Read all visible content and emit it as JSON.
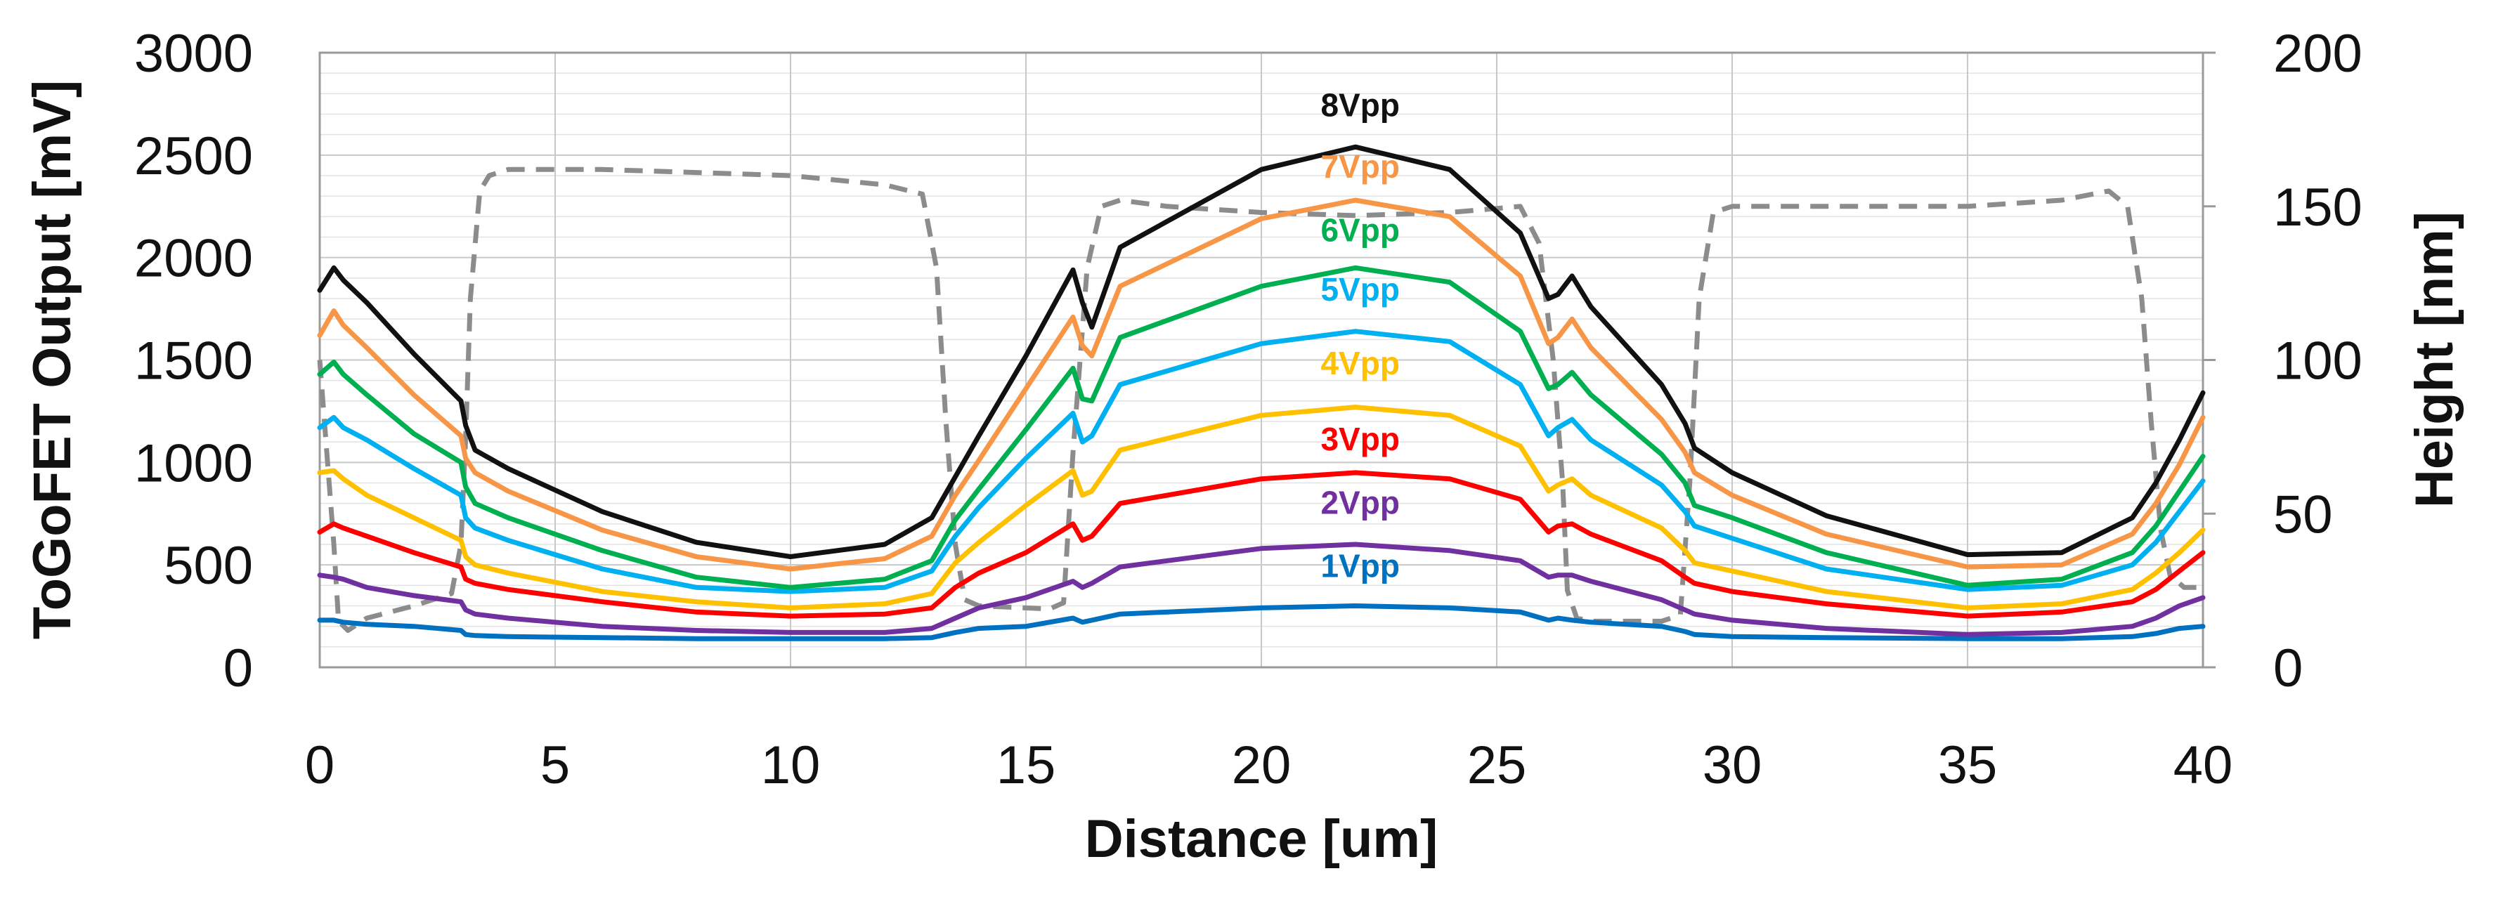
{
  "chart_data": {
    "type": "line",
    "title": "",
    "xlabel": "Distance [um]",
    "ylabel": "ToGoFET Output [mV]",
    "y2label": "Height [nm]",
    "xlim": [
      0,
      40
    ],
    "ylim": [
      0,
      3000
    ],
    "y2lim": [
      0,
      200
    ],
    "xticks": [
      "0",
      "5",
      "10",
      "15",
      "20",
      "25",
      "30",
      "35",
      "40"
    ],
    "yticks": [
      "0",
      "500",
      "1000",
      "1500",
      "2000",
      "2500",
      "3000"
    ],
    "y2ticks": [
      "0",
      "50",
      "100",
      "150",
      "200"
    ],
    "grid": true,
    "x": [
      0,
      0.3,
      0.5,
      1,
      2,
      3,
      3.1,
      3.3,
      4,
      6,
      8,
      10,
      12,
      13,
      13.5,
      14,
      15,
      16,
      16.2,
      16.4,
      17,
      20,
      22,
      24,
      25.5,
      26.1,
      26.3,
      26.6,
      27,
      28.5,
      29,
      29.2,
      30,
      32,
      35,
      37,
      38.5,
      39,
      39.5,
      40
    ],
    "series": [
      {
        "name": "8Vpp",
        "color": "#111111",
        "label_x": 22.1,
        "label_y": 2690,
        "values": [
          1840,
          1950,
          1890,
          1780,
          1530,
          1300,
          1180,
          1060,
          970,
          760,
          610,
          540,
          600,
          730,
          930,
          1130,
          1520,
          1940,
          1780,
          1660,
          2050,
          2430,
          2540,
          2430,
          2120,
          1800,
          1820,
          1910,
          1760,
          1380,
          1190,
          1070,
          950,
          740,
          550,
          560,
          730,
          900,
          1110,
          1340
        ]
      },
      {
        "name": "7Vpp",
        "color": "#f79646",
        "label_x": 22.1,
        "label_y": 2390,
        "values": [
          1620,
          1740,
          1670,
          1560,
          1330,
          1130,
          1020,
          950,
          860,
          670,
          540,
          480,
          530,
          640,
          840,
          1010,
          1360,
          1710,
          1570,
          1520,
          1860,
          2190,
          2280,
          2200,
          1910,
          1580,
          1610,
          1700,
          1560,
          1210,
          1050,
          950,
          840,
          650,
          490,
          500,
          650,
          800,
          990,
          1220
        ]
      },
      {
        "name": "6Vpp",
        "color": "#00b050",
        "label_x": 22.1,
        "label_y": 2080,
        "values": [
          1430,
          1490,
          1430,
          1330,
          1140,
          1000,
          880,
          800,
          730,
          570,
          440,
          390,
          430,
          520,
          720,
          870,
          1160,
          1460,
          1310,
          1300,
          1610,
          1860,
          1950,
          1880,
          1640,
          1360,
          1380,
          1440,
          1330,
          1040,
          900,
          790,
          730,
          560,
          400,
          430,
          560,
          690,
          860,
          1030
        ]
      },
      {
        "name": "5Vpp",
        "color": "#00b0f0",
        "label_x": 22.1,
        "label_y": 1790,
        "values": [
          1170,
          1220,
          1170,
          1110,
          970,
          840,
          730,
          680,
          620,
          480,
          390,
          370,
          390,
          470,
          640,
          780,
          1020,
          1240,
          1100,
          1130,
          1380,
          1580,
          1640,
          1590,
          1380,
          1130,
          1170,
          1210,
          1110,
          890,
          760,
          690,
          630,
          480,
          380,
          400,
          500,
          610,
          760,
          910
        ]
      },
      {
        "name": "4Vpp",
        "color": "#ffc000",
        "label_x": 22.1,
        "label_y": 1430,
        "values": [
          950,
          960,
          920,
          840,
          730,
          620,
          540,
          500,
          460,
          370,
          320,
          290,
          310,
          360,
          510,
          610,
          790,
          960,
          840,
          860,
          1060,
          1230,
          1270,
          1230,
          1080,
          860,
          890,
          920,
          840,
          680,
          570,
          510,
          470,
          370,
          290,
          310,
          380,
          460,
          560,
          670
        ]
      },
      {
        "name": "3Vpp",
        "color": "#ff0000",
        "label_x": 22.1,
        "label_y": 1060,
        "values": [
          660,
          700,
          680,
          640,
          560,
          490,
          430,
          410,
          380,
          320,
          270,
          250,
          260,
          290,
          390,
          460,
          560,
          700,
          620,
          640,
          800,
          920,
          950,
          920,
          820,
          660,
          690,
          700,
          650,
          520,
          440,
          410,
          370,
          310,
          250,
          270,
          320,
          380,
          470,
          560
        ]
      },
      {
        "name": "2Vpp",
        "color": "#7030a0",
        "label_x": 22.1,
        "label_y": 750,
        "values": [
          450,
          440,
          430,
          390,
          350,
          320,
          280,
          260,
          240,
          200,
          180,
          170,
          170,
          190,
          240,
          290,
          340,
          420,
          390,
          410,
          490,
          580,
          600,
          570,
          520,
          440,
          450,
          450,
          420,
          330,
          280,
          260,
          230,
          190,
          160,
          170,
          200,
          240,
          300,
          340
        ]
      },
      {
        "name": "1Vpp",
        "color": "#0070c0",
        "label_x": 22.1,
        "label_y": 440,
        "values": [
          230,
          230,
          220,
          210,
          200,
          180,
          160,
          155,
          150,
          145,
          140,
          140,
          140,
          145,
          170,
          190,
          200,
          240,
          220,
          230,
          260,
          290,
          300,
          290,
          270,
          230,
          240,
          230,
          220,
          200,
          175,
          160,
          150,
          145,
          140,
          140,
          150,
          165,
          190,
          200
        ]
      }
    ],
    "height_profile": {
      "name": "Height",
      "style": "dashed",
      "color": "#8c8c8c",
      "axis": "right",
      "x": [
        0,
        0.3,
        0.4,
        0.6,
        1,
        2,
        2.8,
        3.0,
        3.1,
        3.2,
        3.4,
        3.6,
        4,
        6,
        8,
        10,
        12,
        12.8,
        13.1,
        13.3,
        13.5,
        13.7,
        14,
        15.5,
        15.8,
        16.0,
        16.3,
        16.6,
        17,
        18,
        20,
        22,
        24,
        25.5,
        25.9,
        26.2,
        26.4,
        26.5,
        26.7,
        27,
        28.5,
        28.9,
        29.1,
        29.3,
        29.6,
        30,
        32,
        35,
        37,
        38,
        38.4,
        38.7,
        38.9,
        39.1,
        39.3,
        39.6,
        40
      ],
      "values": [
        100,
        40,
        15,
        12,
        16,
        20,
        24,
        40,
        75,
        120,
        155,
        160,
        162,
        162,
        161,
        160,
        157,
        154,
        130,
        80,
        40,
        22,
        20,
        19,
        21,
        70,
        130,
        150,
        152,
        150,
        148,
        147,
        148,
        150,
        138,
        100,
        60,
        25,
        16,
        15,
        15,
        17,
        60,
        120,
        148,
        150,
        150,
        150,
        152,
        155,
        150,
        120,
        80,
        45,
        30,
        26,
        26
      ]
    }
  }
}
